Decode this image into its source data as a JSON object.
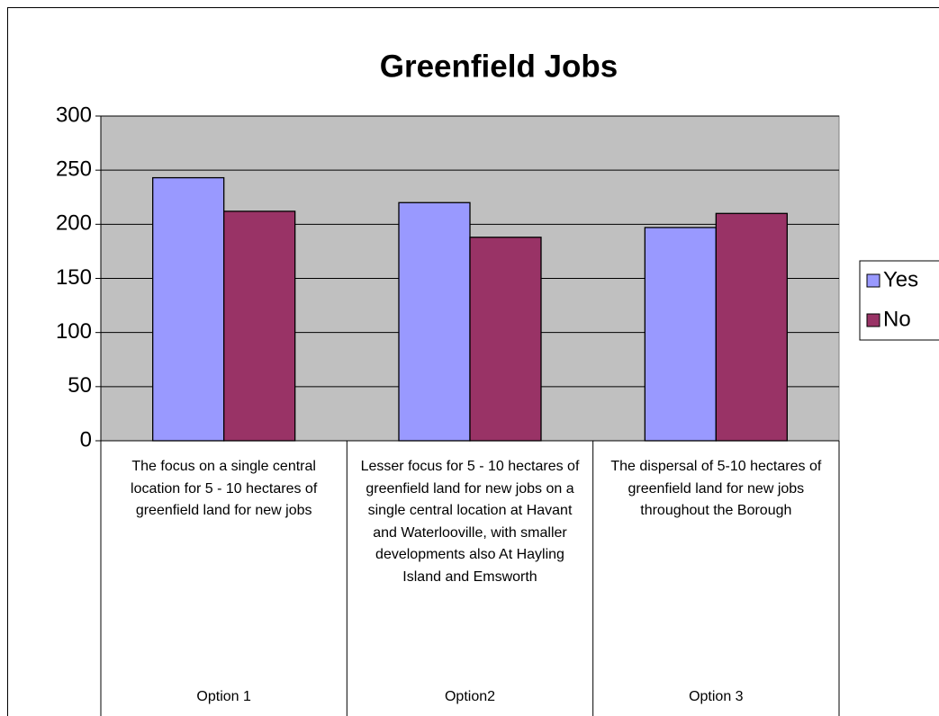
{
  "chart_data": {
    "type": "bar",
    "title": "Greenfield Jobs",
    "categories": [
      "Option 1",
      "Option2",
      "Option 3"
    ],
    "category_descriptions": [
      "The focus on a single central location for 5 - 10 hectares of greenfield land for new jobs",
      "Lesser focus for 5 - 10 hectares of greenfield land for new jobs on a single central location at Havant and Waterlooville, with smaller developments also At Hayling Island and Emsworth",
      "The dispersal of 5-10 hectares of greenfield land for new jobs throughout the Borough"
    ],
    "series": [
      {
        "name": "Yes",
        "color": "#9999ff",
        "values": [
          243,
          220,
          197
        ]
      },
      {
        "name": "No",
        "color": "#993366",
        "values": [
          212,
          188,
          210
        ]
      }
    ],
    "ylim": [
      0,
      300
    ],
    "yticks": [
      0,
      50,
      100,
      150,
      200,
      250,
      300
    ],
    "grid": true,
    "legend": "right"
  }
}
